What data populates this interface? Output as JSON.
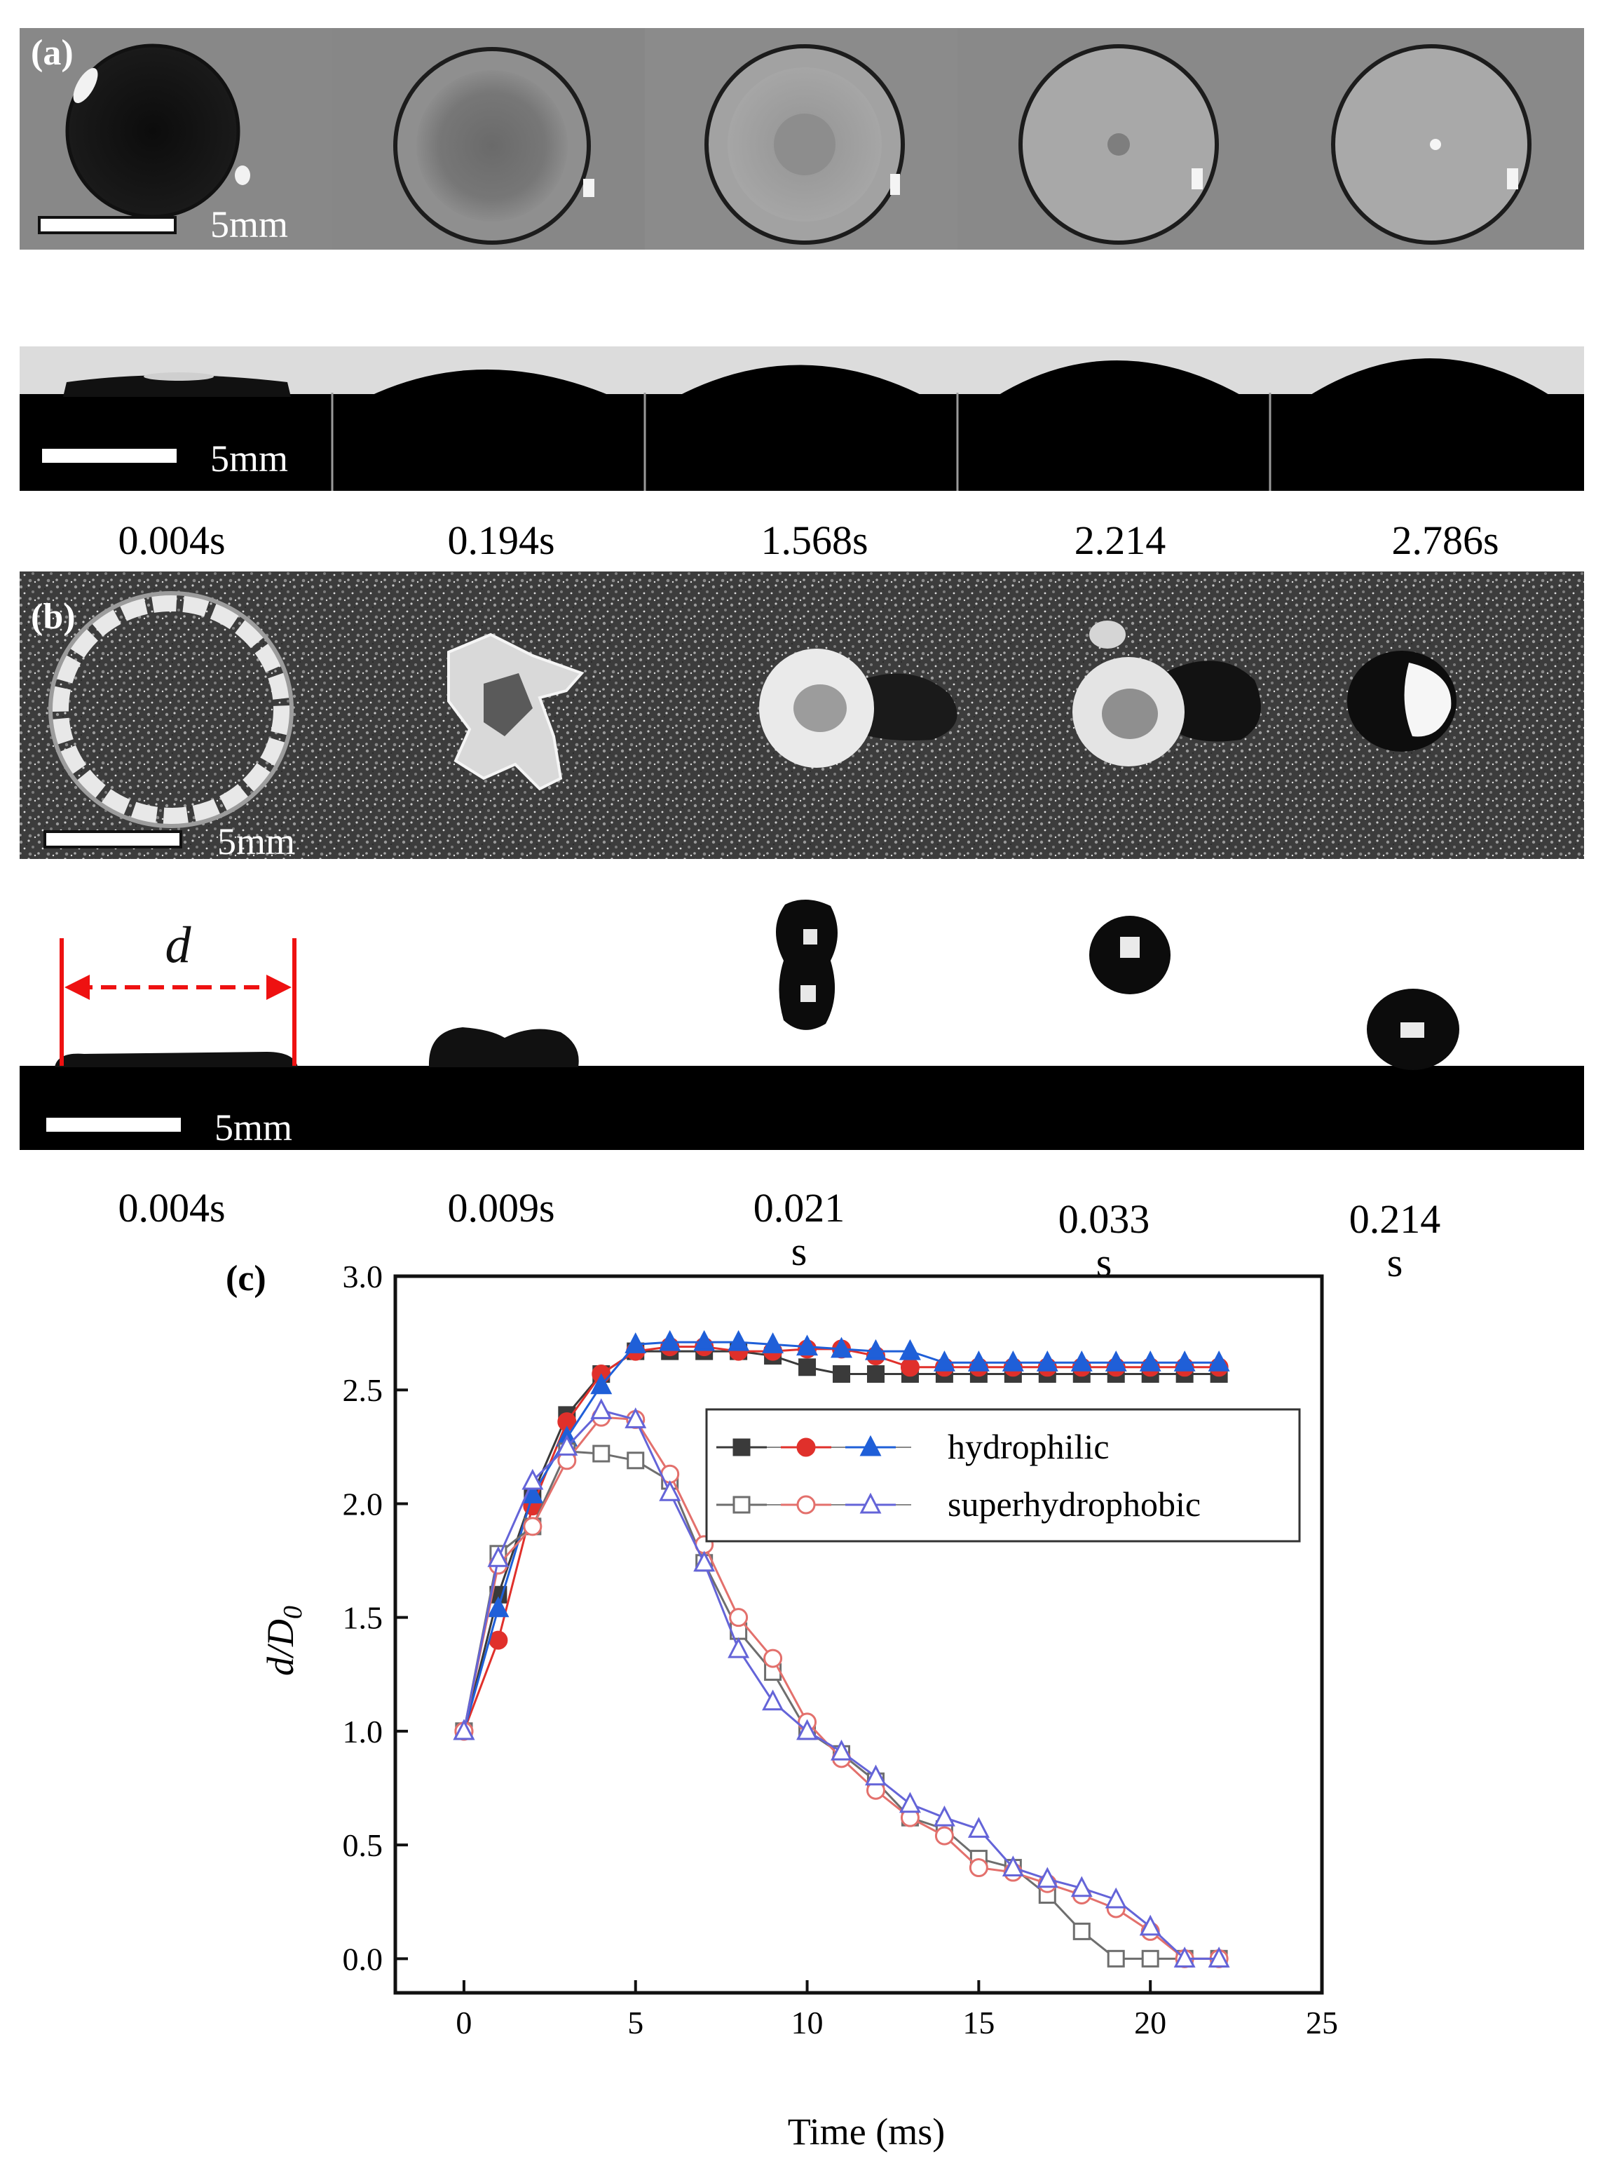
{
  "panel_a": {
    "label": "(a)",
    "scale_top": "5mm",
    "scale_side": "5mm",
    "times": [
      "0.004s",
      "0.194s",
      "1.568s",
      "2.214\ns",
      "2.786s"
    ]
  },
  "panel_b": {
    "label": "(b)",
    "scale_top": "5mm",
    "scale_side": "5mm",
    "diameter_symbol": "d",
    "times": [
      "0.004s",
      "0.009s",
      "0.021\ns",
      "0.033\ns",
      "0.214\ns"
    ]
  },
  "panel_c": {
    "label": "(c)"
  },
  "colors": {
    "black_series": "#3a3a3a",
    "red_series": "#e0302b",
    "blue_series": "#1f5fd8",
    "gray_open": "#6e6e6e",
    "red_open": "#e3706c",
    "blue_open": "#6464d8",
    "dimension_line": "#ee1111"
  },
  "chart_data": {
    "type": "line",
    "xlabel": "Time (ms)",
    "ylabel_main": "d/D",
    "ylabel_sub": "0",
    "xlim": [
      -2,
      25
    ],
    "ylim": [
      -0.15,
      3.0
    ],
    "x_ticks": [
      0,
      5,
      10,
      15,
      20,
      25
    ],
    "y_ticks": [
      0.0,
      0.5,
      1.0,
      1.5,
      2.0,
      2.5,
      3.0
    ],
    "grid": false,
    "legend_position": "upper-right",
    "legend": [
      {
        "label": "hydrophilic",
        "series": [
          0,
          1,
          2
        ]
      },
      {
        "label": "superhydrophobic",
        "series": [
          3,
          4,
          5
        ]
      }
    ],
    "series": [
      {
        "marker": "square",
        "filled": true,
        "color": "#3a3a3a",
        "x": [
          0,
          1,
          2,
          3,
          4,
          5,
          6,
          7,
          8,
          9,
          10,
          11,
          12,
          13,
          14,
          15,
          16,
          17,
          18,
          19,
          20,
          21,
          22
        ],
        "y": [
          1.0,
          1.6,
          2.04,
          2.39,
          2.57,
          2.67,
          2.67,
          2.67,
          2.67,
          2.65,
          2.6,
          2.57,
          2.57,
          2.57,
          2.57,
          2.57,
          2.57,
          2.57,
          2.57,
          2.57,
          2.57,
          2.57,
          2.57
        ]
      },
      {
        "marker": "circle",
        "filled": true,
        "color": "#e0302b",
        "x": [
          0,
          1,
          2,
          3,
          4,
          5,
          6,
          7,
          8,
          9,
          10,
          11,
          12,
          13,
          14,
          15,
          16,
          17,
          18,
          19,
          20,
          21,
          22
        ],
        "y": [
          1.0,
          1.4,
          1.99,
          2.36,
          2.57,
          2.67,
          2.69,
          2.69,
          2.67,
          2.67,
          2.68,
          2.68,
          2.65,
          2.6,
          2.6,
          2.6,
          2.6,
          2.6,
          2.6,
          2.6,
          2.6,
          2.6,
          2.6
        ]
      },
      {
        "marker": "triangle",
        "filled": true,
        "color": "#1f5fd8",
        "x": [
          0,
          1,
          2,
          3,
          4,
          5,
          6,
          7,
          8,
          9,
          10,
          11,
          12,
          13,
          14,
          15,
          16,
          17,
          18,
          19,
          20,
          21,
          22
        ],
        "y": [
          1.0,
          1.54,
          2.04,
          2.29,
          2.52,
          2.7,
          2.71,
          2.71,
          2.71,
          2.7,
          2.69,
          2.68,
          2.67,
          2.67,
          2.62,
          2.62,
          2.62,
          2.62,
          2.62,
          2.62,
          2.62,
          2.62,
          2.62
        ]
      },
      {
        "marker": "square",
        "filled": false,
        "color": "#6e6e6e",
        "x": [
          0,
          1,
          2,
          3,
          4,
          5,
          6,
          7,
          8,
          9,
          10,
          11,
          12,
          13,
          14,
          15,
          16,
          17,
          18,
          19,
          20,
          21,
          22
        ],
        "y": [
          1.0,
          1.78,
          1.9,
          2.23,
          2.22,
          2.19,
          2.1,
          1.74,
          1.44,
          1.26,
          1.0,
          0.9,
          0.78,
          0.62,
          0.57,
          0.44,
          0.4,
          0.28,
          0.12,
          0.0,
          0.0,
          0.0,
          0.0
        ]
      },
      {
        "marker": "circle",
        "filled": false,
        "color": "#e3706c",
        "x": [
          0,
          1,
          2,
          3,
          4,
          5,
          6,
          7,
          8,
          9,
          10,
          11,
          12,
          13,
          14,
          15,
          16,
          17,
          18,
          19,
          20,
          21,
          22
        ],
        "y": [
          1.0,
          1.73,
          1.9,
          2.19,
          2.38,
          2.37,
          2.13,
          1.82,
          1.5,
          1.32,
          1.04,
          0.88,
          0.74,
          0.62,
          0.54,
          0.4,
          0.38,
          0.33,
          0.28,
          0.22,
          0.12,
          0.0,
          0.0
        ]
      },
      {
        "marker": "triangle",
        "filled": false,
        "color": "#6464d8",
        "x": [
          0,
          1,
          2,
          3,
          4,
          5,
          6,
          7,
          8,
          9,
          10,
          11,
          12,
          13,
          14,
          15,
          16,
          17,
          18,
          19,
          20,
          21,
          22
        ],
        "y": [
          1.0,
          1.76,
          2.1,
          2.25,
          2.41,
          2.37,
          2.05,
          1.74,
          1.36,
          1.13,
          1.0,
          0.91,
          0.8,
          0.68,
          0.62,
          0.57,
          0.4,
          0.35,
          0.31,
          0.26,
          0.14,
          0.0,
          0.0
        ]
      }
    ]
  }
}
